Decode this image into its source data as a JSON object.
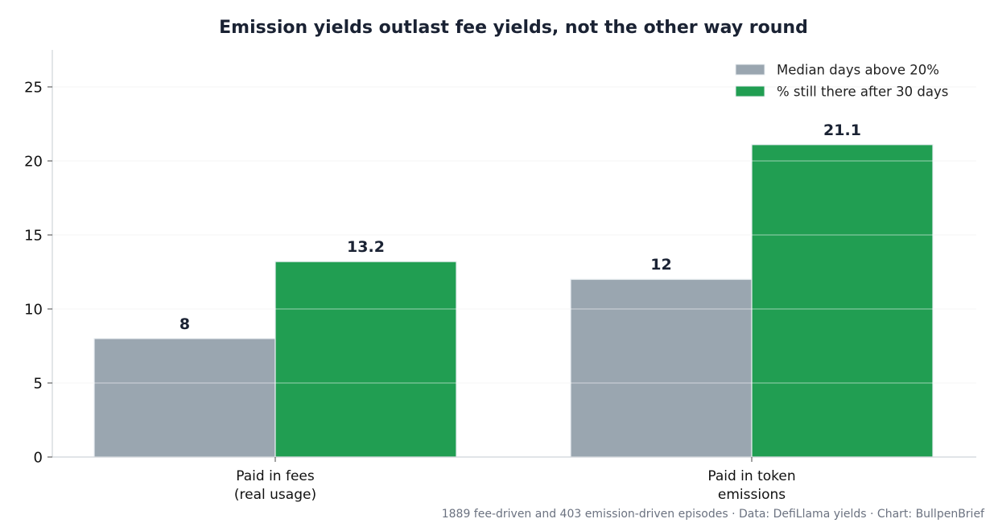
{
  "chart_data": {
    "type": "bar",
    "title": "Emission yields outlast fee yields, not the other way round",
    "categories": [
      [
        "Paid in fees",
        "(real usage)"
      ],
      [
        "Paid in token",
        "emissions"
      ]
    ],
    "series": [
      {
        "name": "Median days above 20%",
        "values": [
          8,
          12
        ],
        "color": "#9aa6b0"
      },
      {
        "name": "% still there after 30 days",
        "values": [
          13.2,
          21.1
        ],
        "color": "#219e52"
      }
    ],
    "ylim": [
      0,
      27.5
    ],
    "yticks": [
      0,
      5,
      10,
      15,
      20,
      25
    ],
    "grid": true,
    "legend_position": "top-right",
    "caption": "1889 fee-driven and 403 emission-driven episodes · Data: DefiLlama yields · Chart: BullpenBrief"
  }
}
